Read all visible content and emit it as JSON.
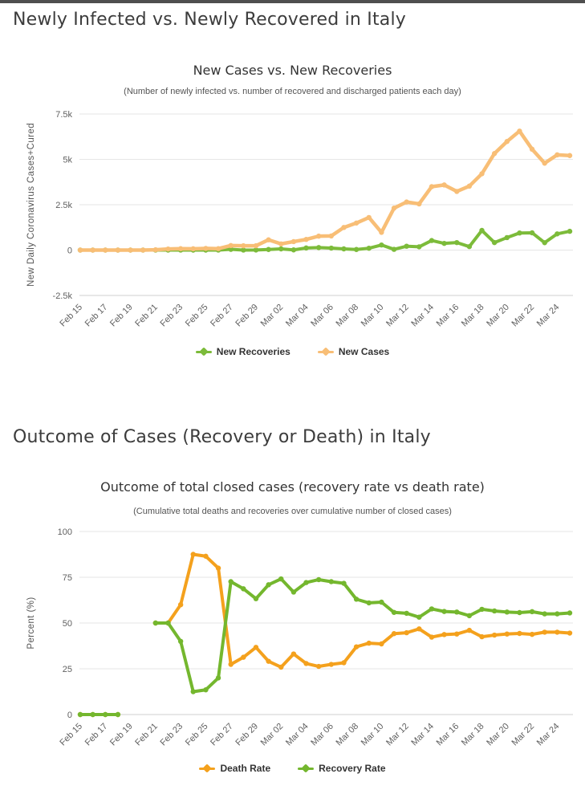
{
  "sections": [
    {
      "heading": "Newly Infected vs. Newly Recovered in Italy"
    },
    {
      "heading": "Outcome of Cases (Recovery or Death) in Italy"
    }
  ],
  "colors": {
    "new_recoveries_green": "#7CBB3A",
    "new_cases_light_orange": "#F8BE76",
    "death_rate_orange": "#F4A11D",
    "recovery_rate_green": "#74B72E",
    "gridline": "#E6E6E6",
    "axis_line": "#CFCFCF",
    "tick_text": "#606060",
    "title_text": "#333333",
    "heading_text": "#3C3C3C"
  },
  "chart_data": [
    {
      "type": "line",
      "title": "New Cases vs. New Recoveries",
      "subtitle": "(Number of newly infected vs. number of recovered and discharged patients each day)",
      "xlabel": "",
      "ylabel": "New Daily Coronavirus Cases+Cured",
      "ylim": [
        -2500,
        7500
      ],
      "grid": true,
      "legend_position": "bottom",
      "tick_step": 2,
      "yticks": [
        {
          "value": 7500,
          "label": "7.5k"
        },
        {
          "value": 5000,
          "label": "5k"
        },
        {
          "value": 2500,
          "label": "2.5k"
        },
        {
          "value": 0,
          "label": "0"
        },
        {
          "value": -2500,
          "label": "-2.5k"
        }
      ],
      "categories": [
        "Feb 15",
        "Feb 16",
        "Feb 17",
        "Feb 18",
        "Feb 19",
        "Feb 20",
        "Feb 21",
        "Feb 22",
        "Feb 23",
        "Feb 24",
        "Feb 25",
        "Feb 26",
        "Feb 27",
        "Feb 28",
        "Feb 29",
        "Mar 01",
        "Mar 02",
        "Mar 03",
        "Mar 04",
        "Mar 05",
        "Mar 06",
        "Mar 07",
        "Mar 08",
        "Mar 09",
        "Mar 10",
        "Mar 11",
        "Mar 12",
        "Mar 13",
        "Mar 14",
        "Mar 15",
        "Mar 16",
        "Mar 17",
        "Mar 18",
        "Mar 19",
        "Mar 20",
        "Mar 21",
        "Mar 22",
        "Mar 23",
        "Mar 24",
        "Mar 25"
      ],
      "series": [
        {
          "name": "New Recoveries",
          "color": "#7CBB3A",
          "lineWidth": 4,
          "values": [
            0,
            0,
            0,
            0,
            0,
            0,
            0,
            1,
            1,
            0,
            0,
            2,
            42,
            1,
            4,
            33,
            66,
            11,
            116,
            138,
            109,
            66,
            33,
            102,
            280,
            41,
            213,
            181,
            527,
            369,
            414,
            192,
            1084,
            415,
            689,
            943,
            952,
            408,
            894,
            1036
          ]
        },
        {
          "name": "New Cases",
          "color": "#F8BE76",
          "lineWidth": 4.5,
          "values": [
            0,
            0,
            0,
            0,
            0,
            1,
            17,
            59,
            78,
            72,
            93,
            78,
            250,
            238,
            240,
            566,
            342,
            466,
            587,
            769,
            778,
            1247,
            1492,
            1797,
            977,
            2313,
            2651,
            2547,
            3497,
            3590,
            3233,
            3526,
            4207,
            5322,
            5986,
            6557,
            5560,
            4789,
            5249,
            5210
          ]
        }
      ]
    },
    {
      "type": "line",
      "title": "Outcome of total closed cases (recovery rate vs death rate)",
      "subtitle": "(Cumulative total deaths and recoveries over cumulative number of closed cases)",
      "xlabel": "",
      "ylabel": "Percent (%)",
      "ylim": [
        0,
        100
      ],
      "grid": true,
      "legend_position": "bottom",
      "tick_step": 2,
      "yticks": [
        {
          "value": 100,
          "label": "100"
        },
        {
          "value": 75,
          "label": "75"
        },
        {
          "value": 50,
          "label": "50"
        },
        {
          "value": 25,
          "label": "25"
        },
        {
          "value": 0,
          "label": "0"
        }
      ],
      "categories": [
        "Feb 15",
        "Feb 16",
        "Feb 17",
        "Feb 18",
        "Feb 19",
        "Feb 20",
        "Feb 21",
        "Feb 22",
        "Feb 23",
        "Feb 24",
        "Feb 25",
        "Feb 26",
        "Feb 27",
        "Feb 28",
        "Feb 29",
        "Mar 01",
        "Mar 02",
        "Mar 03",
        "Mar 04",
        "Mar 05",
        "Mar 06",
        "Mar 07",
        "Mar 08",
        "Mar 09",
        "Mar 10",
        "Mar 11",
        "Mar 12",
        "Mar 13",
        "Mar 14",
        "Mar 15",
        "Mar 16",
        "Mar 17",
        "Mar 18",
        "Mar 19",
        "Mar 20",
        "Mar 21",
        "Mar 22",
        "Mar 23",
        "Mar 24",
        "Mar 25"
      ],
      "series": [
        {
          "name": "Death Rate",
          "color": "#F4A11D",
          "lineWidth": 4,
          "values": [
            0,
            0,
            0,
            0,
            null,
            null,
            50,
            50,
            60,
            87.5,
            86.5,
            80,
            27.4,
            31.3,
            36.7,
            29.1,
            25.9,
            33.1,
            27.9,
            26.3,
            27.4,
            28.3,
            37,
            39,
            38.6,
            44.2,
            44.7,
            46.8,
            42.3,
            43.7,
            44,
            46,
            42.5,
            43.4,
            44,
            44.3,
            43.8,
            45,
            45,
            44.5
          ]
        },
        {
          "name": "Recovery Rate",
          "color": "#74B72E",
          "lineWidth": 4,
          "values": [
            0,
            0,
            0,
            0,
            null,
            null,
            50,
            50,
            40,
            12.5,
            13.5,
            20,
            72.6,
            68.7,
            63.3,
            70.9,
            74.1,
            66.9,
            72.1,
            73.7,
            72.6,
            71.7,
            63,
            61,
            61.4,
            55.8,
            55.3,
            53.2,
            57.7,
            56.3,
            56,
            54,
            57.5,
            56.6,
            56,
            55.7,
            56.2,
            55,
            55,
            55.5
          ]
        }
      ]
    }
  ]
}
